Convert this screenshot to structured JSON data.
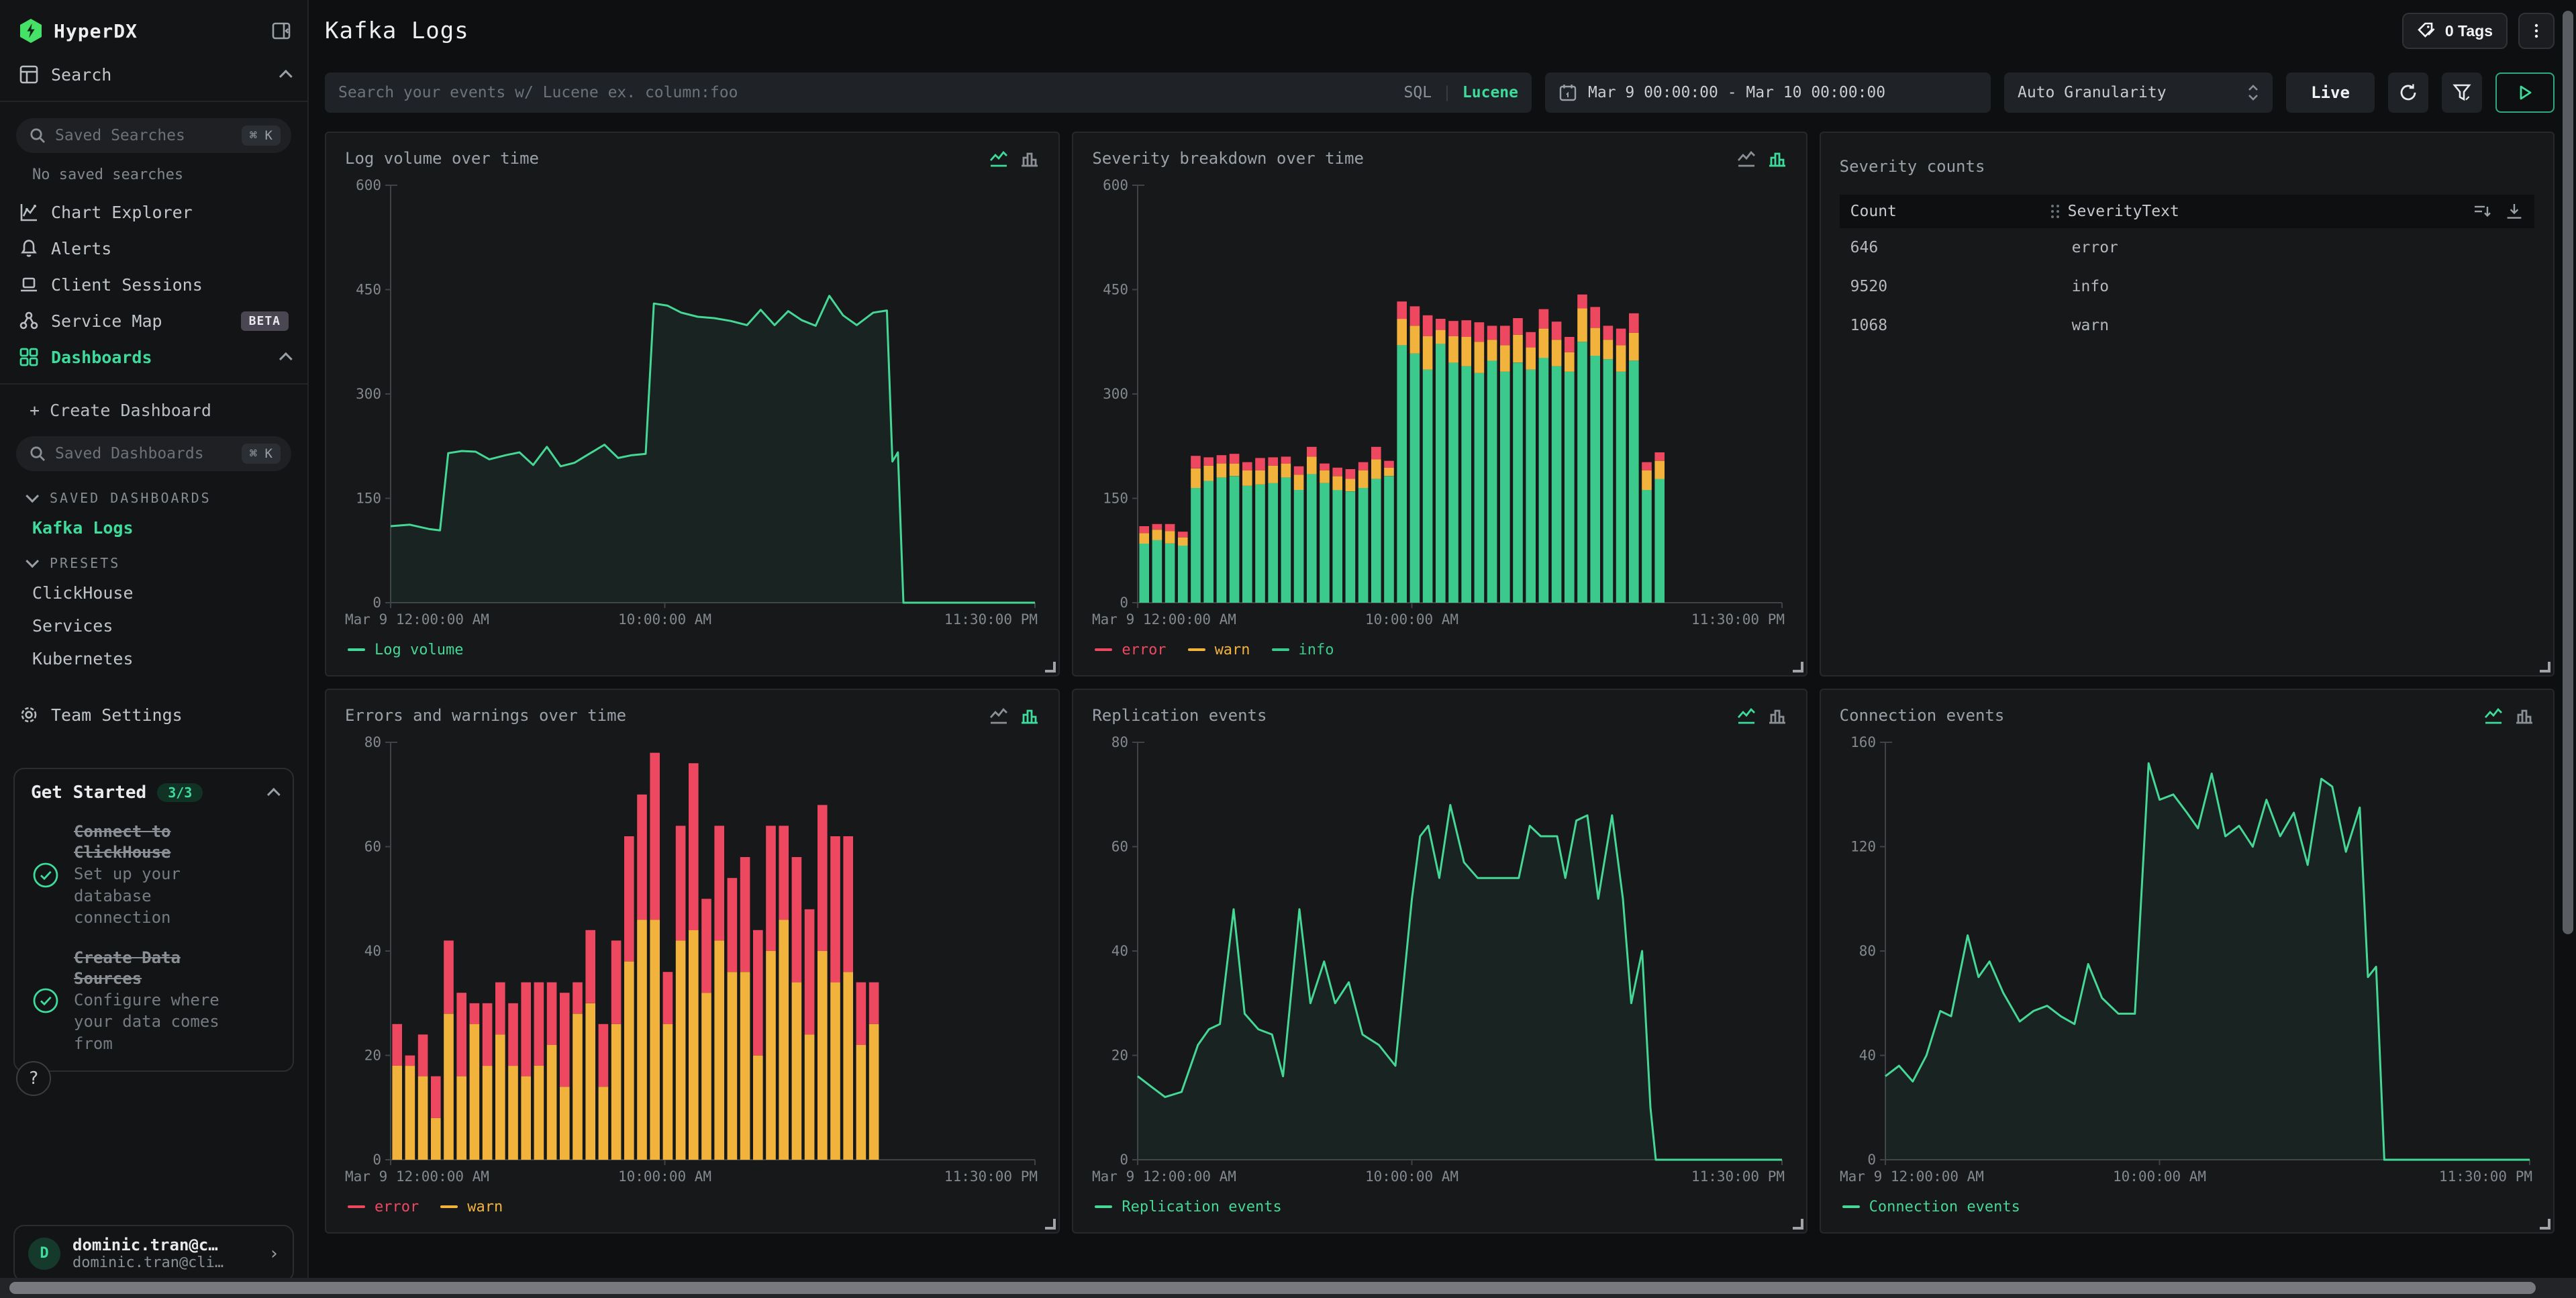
{
  "colors": {
    "accent": "#3edc9c",
    "line_green": "#45d795",
    "bar_green": "#3cc98c",
    "warn": "#f2b33c",
    "error": "#ee4861"
  },
  "sidebar": {
    "brand": "HyperDX",
    "search_label": "Search",
    "saved_searches_placeholder": "Saved Searches",
    "kbd_shortcut": "⌘ K",
    "no_saved_searches": "No saved searches",
    "nav": [
      {
        "label": "Chart Explorer"
      },
      {
        "label": "Alerts"
      },
      {
        "label": "Client Sessions"
      },
      {
        "label": "Service Map",
        "badge": "BETA"
      },
      {
        "label": "Dashboards"
      }
    ],
    "create_dashboard": "+ Create Dashboard",
    "saved_dashboards_placeholder": "Saved Dashboards",
    "sections": {
      "saved": "SAVED DASHBOARDS",
      "presets": "PRESETS"
    },
    "saved_items": [
      {
        "label": "Kafka Logs"
      }
    ],
    "preset_items": [
      {
        "label": "ClickHouse"
      },
      {
        "label": "Services"
      },
      {
        "label": "Kubernetes"
      }
    ],
    "team_settings": "Team Settings",
    "get_started": {
      "title": "Get Started",
      "badge": "3/3",
      "items": [
        {
          "done_title": "Connect to ClickHouse",
          "desc": "Set up your database connection"
        },
        {
          "done_title": "Create Data Sources",
          "desc": "Configure where your data comes from"
        }
      ]
    },
    "help_glyph": "?",
    "user": {
      "initial": "D",
      "name": "dominic.tran@c…",
      "email": "dominic.tran@cli…"
    }
  },
  "header": {
    "title": "Kafka Logs",
    "tags_label": "0 Tags"
  },
  "toolbar": {
    "search_placeholder": "Search your events w/ Lucene ex. column:foo",
    "sql": "SQL",
    "divider": "|",
    "lucene": "Lucene",
    "time_range": "Mar 9 00:00:00 - Mar 10 00:00:00",
    "granularity": "Auto Granularity",
    "live": "Live"
  },
  "chart_data": [
    {
      "id": "log-volume",
      "type": "line",
      "title": "Log volume over time",
      "active": "line",
      "xmax": 23.5,
      "ylim": [
        0,
        600
      ],
      "yticks": [
        0,
        150,
        300,
        450,
        600
      ],
      "grid": false,
      "legend_position": "bottom",
      "xticks": [
        {
          "pos": 0,
          "label": "Mar 9 12:00:00 AM",
          "align": "start"
        },
        {
          "pos": 10,
          "label": "10:00:00 AM",
          "align": "middle"
        },
        {
          "pos": 23.5,
          "label": "11:30:00 PM",
          "align": "end"
        }
      ],
      "series": [
        {
          "name": "Log volume",
          "color": "#45d795",
          "points": [
            [
              0,
              110
            ],
            [
              0.7,
              112
            ],
            [
              1.4,
              106
            ],
            [
              1.8,
              104
            ],
            [
              2.1,
              215
            ],
            [
              2.6,
              218
            ],
            [
              3.1,
              217
            ],
            [
              3.6,
              206
            ],
            [
              4.2,
              212
            ],
            [
              4.7,
              216
            ],
            [
              5.2,
              198
            ],
            [
              5.7,
              224
            ],
            [
              6.2,
              196
            ],
            [
              6.7,
              201
            ],
            [
              7.2,
              213
            ],
            [
              7.8,
              227
            ],
            [
              8.3,
              208
            ],
            [
              8.8,
              212
            ],
            [
              9.3,
              214
            ],
            [
              9.6,
              430
            ],
            [
              10.1,
              427
            ],
            [
              10.6,
              417
            ],
            [
              11.2,
              411
            ],
            [
              11.8,
              409
            ],
            [
              12.4,
              405
            ],
            [
              13,
              399
            ],
            [
              13.5,
              421
            ],
            [
              14,
              399
            ],
            [
              14.5,
              419
            ],
            [
              15,
              406
            ],
            [
              15.5,
              398
            ],
            [
              16,
              441
            ],
            [
              16.5,
              413
            ],
            [
              17,
              399
            ],
            [
              17.6,
              417
            ],
            [
              18.1,
              420
            ],
            [
              18.3,
              203
            ],
            [
              18.5,
              216
            ],
            [
              18.7,
              0
            ],
            [
              23.5,
              0
            ]
          ]
        }
      ],
      "legend": [
        {
          "label": "Log volume",
          "color": "#45d795"
        }
      ]
    },
    {
      "id": "severity-breakdown",
      "type": "bars",
      "title": "Severity breakdown over time",
      "active": "bar",
      "xmax": 23.5,
      "ylim": [
        0,
        600
      ],
      "yticks": [
        0,
        150,
        300,
        450,
        600
      ],
      "slots": 50,
      "xticks": [
        {
          "pos": 0,
          "label": "Mar 9 12:00:00 AM",
          "align": "start"
        },
        {
          "pos": 10,
          "label": "10:00:00 AM",
          "align": "middle"
        },
        {
          "pos": 23.5,
          "label": "11:30:00 PM",
          "align": "end"
        }
      ],
      "series": [
        {
          "name": "info",
          "color": "#3cc98c",
          "values": [
            85,
            90,
            85,
            82,
            165,
            175,
            180,
            182,
            168,
            170,
            172,
            180,
            162,
            185,
            172,
            162,
            160,
            165,
            178,
            182,
            370,
            358,
            335,
            372,
            345,
            340,
            330,
            348,
            332,
            345,
            335,
            352,
            340,
            332,
            375,
            355,
            350,
            332,
            348,
            162,
            178,
            0,
            0,
            0,
            0,
            0,
            0,
            0,
            0,
            0
          ]
        },
        {
          "name": "warn",
          "color": "#f2b33c",
          "values": [
            15,
            15,
            18,
            12,
            28,
            22,
            20,
            18,
            22,
            20,
            25,
            20,
            22,
            25,
            18,
            20,
            18,
            25,
            28,
            12,
            38,
            40,
            48,
            20,
            38,
            42,
            45,
            30,
            38,
            40,
            32,
            42,
            38,
            28,
            48,
            40,
            28,
            38,
            40,
            28,
            26,
            0,
            0,
            0,
            0,
            0,
            0,
            0,
            0,
            0
          ]
        },
        {
          "name": "error",
          "color": "#ee4861",
          "values": [
            10,
            8,
            10,
            8,
            18,
            12,
            12,
            14,
            12,
            18,
            12,
            10,
            12,
            14,
            10,
            12,
            14,
            12,
            18,
            10,
            25,
            28,
            30,
            16,
            22,
            24,
            28,
            20,
            28,
            24,
            22,
            28,
            26,
            22,
            20,
            30,
            20,
            24,
            28,
            12,
            12,
            0,
            0,
            0,
            0,
            0,
            0,
            0,
            0,
            0
          ]
        }
      ],
      "legend": [
        {
          "label": "error",
          "color": "#ee4861"
        },
        {
          "label": "warn",
          "color": "#f2b33c"
        },
        {
          "label": "info",
          "color": "#3cc98c"
        }
      ]
    },
    {
      "id": "severity-counts",
      "type": "table",
      "title": "Severity counts",
      "columns": [
        "Count",
        "SeverityText"
      ],
      "rows": [
        [
          "646",
          "error"
        ],
        [
          "9520",
          "info"
        ],
        [
          "1068",
          "warn"
        ]
      ]
    },
    {
      "id": "errors-warnings",
      "type": "bars",
      "title": "Errors and warnings over time",
      "active": "bar",
      "xmax": 23.5,
      "ylim": [
        0,
        80
      ],
      "yticks": [
        0,
        20,
        40,
        60,
        80
      ],
      "slots": 50,
      "xticks": [
        {
          "pos": 0,
          "label": "Mar 9 12:00:00 AM",
          "align": "start"
        },
        {
          "pos": 10,
          "label": "10:00:00 AM",
          "align": "middle"
        },
        {
          "pos": 23.5,
          "label": "11:30:00 PM",
          "align": "end"
        }
      ],
      "series": [
        {
          "name": "warn",
          "color": "#f2b33c",
          "values": [
            18,
            18,
            16,
            8,
            28,
            16,
            26,
            18,
            24,
            18,
            16,
            18,
            22,
            14,
            28,
            30,
            14,
            26,
            38,
            46,
            46,
            26,
            42,
            44,
            32,
            42,
            36,
            36,
            20,
            40,
            46,
            34,
            24,
            40,
            34,
            36,
            22,
            26,
            0,
            0,
            0,
            0,
            0,
            0,
            0,
            0,
            0,
            0,
            0,
            0
          ]
        },
        {
          "name": "error",
          "color": "#ee4861",
          "values": [
            8,
            2,
            8,
            8,
            14,
            16,
            4,
            12,
            10,
            12,
            18,
            16,
            12,
            18,
            6,
            14,
            12,
            16,
            24,
            24,
            32,
            10,
            22,
            32,
            18,
            22,
            18,
            22,
            24,
            24,
            18,
            24,
            24,
            28,
            28,
            26,
            12,
            8,
            0,
            0,
            0,
            0,
            0,
            0,
            0,
            0,
            0,
            0,
            0,
            0
          ]
        }
      ],
      "legend": [
        {
          "label": "error",
          "color": "#ee4861"
        },
        {
          "label": "warn",
          "color": "#f2b33c"
        }
      ]
    },
    {
      "id": "replication-events",
      "type": "line",
      "title": "Replication events",
      "active": "line",
      "xmax": 23.5,
      "ylim": [
        0,
        80
      ],
      "yticks": [
        0,
        20,
        40,
        60,
        80
      ],
      "xticks": [
        {
          "pos": 0,
          "label": "Mar 9 12:00:00 AM",
          "align": "start"
        },
        {
          "pos": 10,
          "label": "10:00:00 AM",
          "align": "middle"
        },
        {
          "pos": 23.5,
          "label": "11:30:00 PM",
          "align": "end"
        }
      ],
      "series": [
        {
          "name": "Replication events",
          "color": "#45d795",
          "points": [
            [
              0,
              16
            ],
            [
              0.5,
              14
            ],
            [
              1,
              12
            ],
            [
              1.6,
              13
            ],
            [
              2.2,
              22
            ],
            [
              2.6,
              25
            ],
            [
              3,
              26
            ],
            [
              3.5,
              48
            ],
            [
              3.9,
              28
            ],
            [
              4.4,
              25
            ],
            [
              4.9,
              24
            ],
            [
              5.3,
              16
            ],
            [
              5.9,
              48
            ],
            [
              6.3,
              30
            ],
            [
              6.8,
              38
            ],
            [
              7.2,
              30
            ],
            [
              7.7,
              34
            ],
            [
              8.2,
              24
            ],
            [
              8.8,
              22
            ],
            [
              9.4,
              18
            ],
            [
              10,
              50
            ],
            [
              10.3,
              62
            ],
            [
              10.6,
              64
            ],
            [
              11,
              54
            ],
            [
              11.4,
              68
            ],
            [
              11.9,
              57
            ],
            [
              12.4,
              54
            ],
            [
              13.2,
              54
            ],
            [
              13.9,
              54
            ],
            [
              14.3,
              64
            ],
            [
              14.7,
              62
            ],
            [
              15.3,
              62
            ],
            [
              15.6,
              54
            ],
            [
              16,
              65
            ],
            [
              16.4,
              66
            ],
            [
              16.8,
              50
            ],
            [
              17.3,
              66
            ],
            [
              17.7,
              50
            ],
            [
              18,
              30
            ],
            [
              18.4,
              40
            ],
            [
              18.7,
              10
            ],
            [
              18.9,
              0
            ],
            [
              23.5,
              0
            ]
          ]
        }
      ],
      "legend": [
        {
          "label": "Replication events",
          "color": "#45d795"
        }
      ]
    },
    {
      "id": "connection-events",
      "type": "line",
      "title": "Connection events",
      "active": "line",
      "xmax": 23.5,
      "ylim": [
        0,
        160
      ],
      "yticks": [
        0,
        40,
        80,
        120,
        160
      ],
      "xticks": [
        {
          "pos": 0,
          "label": "Mar 9 12:00:00 AM",
          "align": "start"
        },
        {
          "pos": 10,
          "label": "10:00:00 AM",
          "align": "middle"
        },
        {
          "pos": 23.5,
          "label": "11:30:00 PM",
          "align": "end"
        }
      ],
      "series": [
        {
          "name": "Connection events",
          "color": "#45d795",
          "points": [
            [
              0,
              32
            ],
            [
              0.5,
              36
            ],
            [
              1,
              30
            ],
            [
              1.5,
              40
            ],
            [
              2,
              57
            ],
            [
              2.4,
              55
            ],
            [
              3,
              86
            ],
            [
              3.4,
              70
            ],
            [
              3.8,
              76
            ],
            [
              4.3,
              64
            ],
            [
              4.9,
              53
            ],
            [
              5.4,
              57
            ],
            [
              5.9,
              59
            ],
            [
              6.4,
              55
            ],
            [
              6.9,
              52
            ],
            [
              7.4,
              75
            ],
            [
              7.9,
              62
            ],
            [
              8.5,
              56
            ],
            [
              9.1,
              56
            ],
            [
              9.6,
              152
            ],
            [
              10,
              138
            ],
            [
              10.5,
              140
            ],
            [
              11,
              133
            ],
            [
              11.4,
              127
            ],
            [
              11.9,
              148
            ],
            [
              12.4,
              124
            ],
            [
              12.9,
              128
            ],
            [
              13.4,
              120
            ],
            [
              13.9,
              138
            ],
            [
              14.4,
              124
            ],
            [
              14.9,
              133
            ],
            [
              15.4,
              113
            ],
            [
              15.9,
              146
            ],
            [
              16.3,
              143
            ],
            [
              16.8,
              118
            ],
            [
              17.3,
              135
            ],
            [
              17.6,
              70
            ],
            [
              17.9,
              74
            ],
            [
              18.2,
              0
            ],
            [
              23.5,
              0
            ]
          ]
        }
      ],
      "legend": [
        {
          "label": "Connection events",
          "color": "#45d795"
        }
      ]
    }
  ]
}
